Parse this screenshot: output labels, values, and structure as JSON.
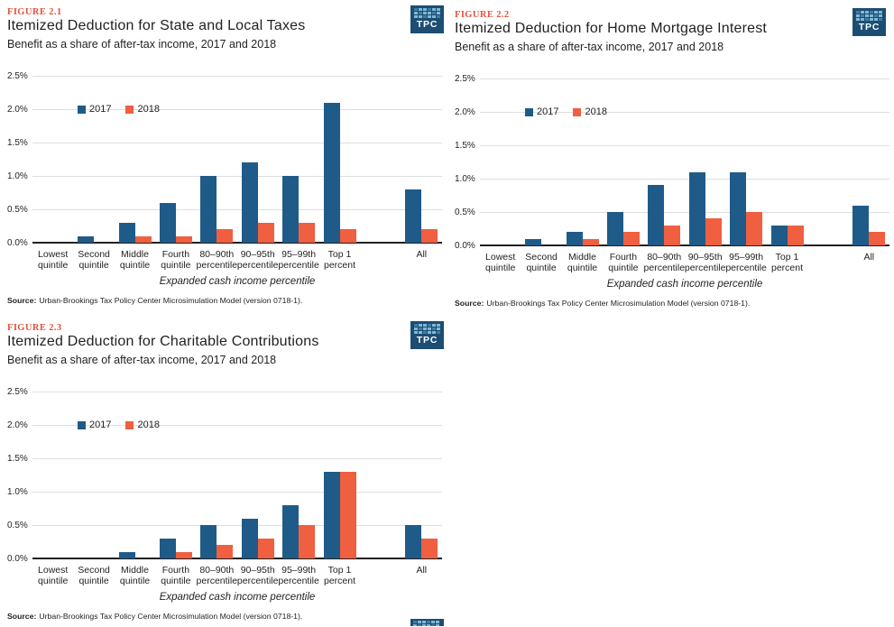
{
  "logo": {
    "text": "TPC"
  },
  "colors": {
    "series_2017": "#1F5B88",
    "series_2018": "#EF5F40",
    "figure_label": "#E0543F",
    "text": "#231F20",
    "gridline": "#DEDEDE",
    "axis_line": "#231F20",
    "logo_bg": "#1C4D73",
    "logo_square_light": "#7FB8D4",
    "logo_square_dark": "#3D7FA6"
  },
  "chart_data": [
    {
      "type": "bar",
      "figure_label": "FIGURE 2.1",
      "title": "Itemized Deduction for State and Local Taxes",
      "subtitle": "Benefit as a share of after-tax income, 2017 and 2018",
      "categories": [
        "Lowest quintile",
        "Second quintile",
        "Middle quintile",
        "Fourth quintile",
        "80–90th percentile",
        "90–95th percentile",
        "95–99th percentile",
        "Top 1 percent",
        "All"
      ],
      "category_lines": [
        [
          "Lowest",
          "quintile"
        ],
        [
          "Second",
          "quintile"
        ],
        [
          "Middle",
          "quintile"
        ],
        [
          "Fourth",
          "quintile"
        ],
        [
          "80–90th",
          "percentile"
        ],
        [
          "90–95th",
          "percentile"
        ],
        [
          "95–99th",
          "percentile"
        ],
        [
          "Top 1",
          "percent"
        ],
        [
          "All"
        ]
      ],
      "series": [
        {
          "name": "2017",
          "color": "#1F5B88",
          "values": [
            0,
            0.1,
            0.3,
            0.6,
            1.0,
            1.2,
            1.0,
            2.1,
            0.8
          ]
        },
        {
          "name": "2018",
          "color": "#EF5F40",
          "values": [
            0,
            0,
            0.1,
            0.1,
            0.2,
            0.3,
            0.3,
            0.2,
            0.2
          ]
        }
      ],
      "xlabel": "Expanded cash income percentile",
      "ylim": [
        0,
        2.5
      ],
      "yticks": [
        "0.0%",
        "0.5%",
        "1.0%",
        "1.5%",
        "2.0%",
        "2.5%"
      ],
      "grid": true,
      "legend_position": "inside-top-left",
      "source_label": "Source:",
      "source_text": "Urban-Brookings Tax Policy Center Microsimulation Model (version 0718-1).",
      "layout": {
        "slots": [
          0,
          1,
          2,
          3,
          4,
          5,
          6,
          7,
          9
        ],
        "slot_count": 10
      }
    },
    {
      "type": "bar",
      "figure_label": "FIGURE 2.2",
      "title": "Itemized Deduction for Home Mortgage Interest",
      "subtitle": "Benefit as a share of after-tax income, 2017 and 2018",
      "categories": [
        "Lowest quintile",
        "Second quintile",
        "Middle quintile",
        "Fourth quintile",
        "80–90th percentile",
        "90–95th percentile",
        "95–99th percentile",
        "Top 1 percent",
        "All"
      ],
      "category_lines": [
        [
          "Lowest",
          "quintile"
        ],
        [
          "Second",
          "quintile"
        ],
        [
          "Middle",
          "quintile"
        ],
        [
          "Fourth",
          "quintile"
        ],
        [
          "80–90th",
          "percentile"
        ],
        [
          "90–95th",
          "percentile"
        ],
        [
          "95–99th",
          "percentile"
        ],
        [
          "Top 1",
          "percent"
        ],
        [
          "All"
        ]
      ],
      "series": [
        {
          "name": "2017",
          "color": "#1F5B88",
          "values": [
            0,
            0.1,
            0.2,
            0.5,
            0.9,
            1.1,
            1.1,
            0.3,
            0.6
          ]
        },
        {
          "name": "2018",
          "color": "#EF5F40",
          "values": [
            0,
            0,
            0.1,
            0.2,
            0.3,
            0.4,
            0.5,
            0.3,
            0.2
          ]
        }
      ],
      "xlabel": "Expanded cash income percentile",
      "ylim": [
        0,
        2.5
      ],
      "yticks": [
        "0.0%",
        "0.5%",
        "1.0%",
        "1.5%",
        "2.0%",
        "2.5%"
      ],
      "grid": true,
      "legend_position": "inside-top-left",
      "source_label": "Source:",
      "source_text": "Urban-Brookings Tax Policy Center Microsimulation Model (version 0718-1).",
      "layout": {
        "slots": [
          0,
          1,
          2,
          3,
          4,
          5,
          6,
          7,
          9
        ],
        "slot_count": 10
      }
    },
    {
      "type": "bar",
      "figure_label": "FIGURE 2.3",
      "title": "Itemized Deduction for Charitable Contributions",
      "subtitle": "Benefit as a share of after-tax income, 2017 and 2018",
      "categories": [
        "Lowest quintile",
        "Second quintile",
        "Middle quintile",
        "Fourth quintile",
        "80–90th percentile",
        "90–95th percentile",
        "95–99th percentile",
        "Top 1 percent",
        "All"
      ],
      "category_lines": [
        [
          "Lowest",
          "quintile"
        ],
        [
          "Second",
          "quintile"
        ],
        [
          "Middle",
          "quintile"
        ],
        [
          "Fourth",
          "quintile"
        ],
        [
          "80–90th",
          "percentile"
        ],
        [
          "90–95th",
          "percentile"
        ],
        [
          "95–99th",
          "percentile"
        ],
        [
          "Top 1",
          "percent"
        ],
        [
          "All"
        ]
      ],
      "series": [
        {
          "name": "2017",
          "color": "#1F5B88",
          "values": [
            0,
            0,
            0.1,
            0.3,
            0.5,
            0.6,
            0.8,
            1.3,
            0.5
          ]
        },
        {
          "name": "2018",
          "color": "#EF5F40",
          "values": [
            0,
            0,
            0,
            0.1,
            0.2,
            0.3,
            0.5,
            1.3,
            0.3
          ]
        }
      ],
      "xlabel": "Expanded cash income percentile",
      "ylim": [
        0,
        2.5
      ],
      "yticks": [
        "0.0%",
        "0.5%",
        "1.0%",
        "1.5%",
        "2.0%",
        "2.5%"
      ],
      "grid": true,
      "legend_position": "inside-top-left",
      "source_label": "Source:",
      "source_text": "Urban-Brookings Tax Policy Center Microsimulation Model (version 0718-1).",
      "layout": {
        "slots": [
          0,
          1,
          2,
          3,
          4,
          5,
          6,
          7,
          9
        ],
        "slot_count": 10
      }
    }
  ]
}
